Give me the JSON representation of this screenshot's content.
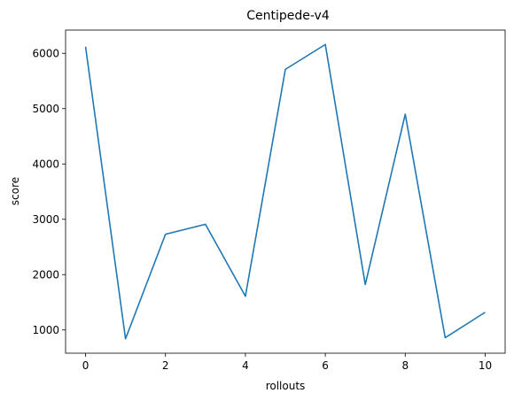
{
  "chart_data": {
    "type": "line",
    "title": "Centipede-v4",
    "xlabel": "rollouts",
    "ylabel": "score",
    "x": [
      0,
      1,
      2,
      3,
      4,
      5,
      6,
      7,
      8,
      9,
      10
    ],
    "series": [
      {
        "values": [
          6120,
          840,
          2730,
          2910,
          1610,
          5710,
          6160,
          1820,
          4900,
          860,
          1320
        ],
        "color": "#1f77b4"
      }
    ],
    "xlim": [
      -0.5,
      10.5
    ],
    "ylim": [
      580,
      6420
    ],
    "xticks": [
      0,
      2,
      4,
      6,
      8,
      10
    ],
    "xtick_labels": [
      "0",
      "2",
      "4",
      "6",
      "8",
      "10"
    ],
    "yticks": [
      1000,
      2000,
      3000,
      4000,
      5000,
      6000
    ],
    "ytick_labels": [
      "1000",
      "2000",
      "3000",
      "4000",
      "5000",
      "6000"
    ],
    "grid": false,
    "legend": "none"
  }
}
